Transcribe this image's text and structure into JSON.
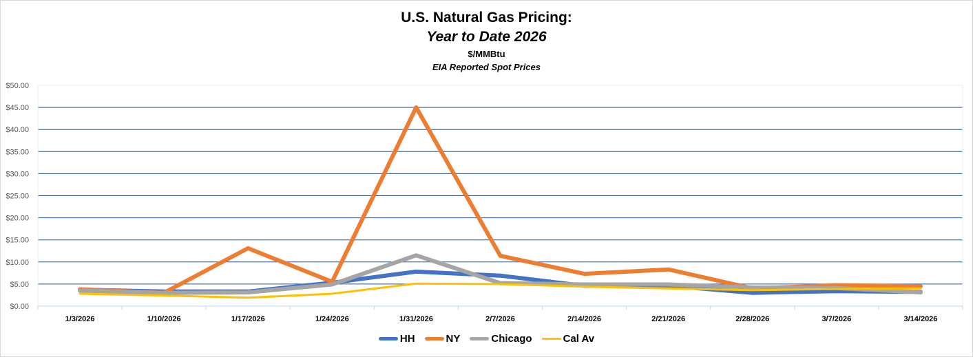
{
  "chart_data": {
    "type": "line",
    "title": "U.S. Natural Gas Pricing:",
    "subtitle": "Year to Date 2026",
    "unit_label": "$/MMBtu",
    "source_label": "EIA Reported Spot Prices",
    "xlabel": "",
    "ylabel": "",
    "ylim": [
      0,
      50
    ],
    "ytick_step": 5,
    "ytick_labels": [
      "$0.00",
      "$5.00",
      "$10.00",
      "$15.00",
      "$20.00",
      "$25.00",
      "$30.00",
      "$35.00",
      "$40.00",
      "$45.00",
      "$50.00"
    ],
    "grid": true,
    "legend_position": "bottom",
    "categories": [
      "1/3/2026",
      "1/10/2026",
      "1/17/2026",
      "1/24/2026",
      "1/31/2026",
      "2/7/2026",
      "2/14/2026",
      "2/21/2026",
      "2/28/2026",
      "3/7/2026",
      "3/14/2026"
    ],
    "series": [
      {
        "name": "HH",
        "color": "#4472C4",
        "values": [
          3.7,
          3.3,
          3.3,
          5.3,
          7.8,
          6.9,
          4.6,
          4.6,
          3.0,
          3.4,
          3.2
        ]
      },
      {
        "name": "NY",
        "color": "#ED7D31",
        "values": [
          3.8,
          3.0,
          13.1,
          5.5,
          45.0,
          11.4,
          7.3,
          8.3,
          4.0,
          4.7,
          4.5
        ]
      },
      {
        "name": "Chicago",
        "color": "#A5A5A5",
        "values": [
          3.5,
          3.0,
          3.1,
          4.9,
          11.5,
          5.2,
          4.9,
          4.9,
          4.2,
          4.1,
          3.1
        ]
      },
      {
        "name": "Cal Av",
        "color": "#FFC000",
        "values": [
          2.8,
          2.4,
          1.9,
          2.8,
          5.1,
          5.0,
          4.4,
          4.0,
          3.6,
          3.9,
          4.0
        ]
      }
    ],
    "gridline_color": "#2F5597",
    "axis_color": "#BDD7EE"
  }
}
